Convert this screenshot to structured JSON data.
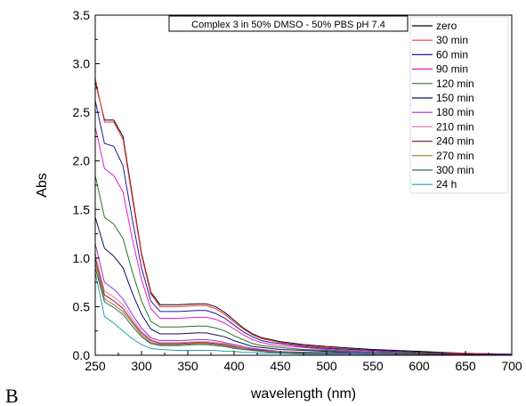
{
  "chart_data": {
    "type": "line",
    "panel_label": "B",
    "title": "Complex 3 in 50% DMSO - 50% PBS pH 7.4",
    "xlabel": "wavelength (nm)",
    "ylabel": "Abs",
    "xlim": [
      250,
      700
    ],
    "ylim": [
      0,
      3.5
    ],
    "xticks": [
      250,
      300,
      350,
      400,
      450,
      500,
      550,
      600,
      650,
      700
    ],
    "yticks": [
      0.0,
      0.5,
      1.0,
      1.5,
      2.0,
      2.5,
      3.0,
      3.5
    ],
    "ytick_labels": [
      "0.0",
      "0.5",
      "1.0",
      "1.5",
      "2.0",
      "2.5",
      "3.0",
      "3.5"
    ],
    "grid": false,
    "legend_position": "top-right",
    "x": [
      250,
      260,
      270,
      280,
      290,
      300,
      310,
      320,
      340,
      360,
      370,
      380,
      390,
      400,
      410,
      420,
      430,
      440,
      450,
      475,
      500,
      550,
      600,
      650,
      700
    ],
    "series": [
      {
        "name": "zero",
        "color": "#000000",
        "values": [
          2.82,
          2.42,
          2.42,
          2.25,
          1.65,
          1.05,
          0.65,
          0.52,
          0.52,
          0.53,
          0.53,
          0.5,
          0.44,
          0.36,
          0.28,
          0.22,
          0.18,
          0.16,
          0.14,
          0.11,
          0.09,
          0.06,
          0.04,
          0.02,
          0.01
        ]
      },
      {
        "name": "30 min",
        "color": "#ff3030",
        "values": [
          2.85,
          2.4,
          2.4,
          2.22,
          1.62,
          1.03,
          0.63,
          0.5,
          0.5,
          0.51,
          0.51,
          0.48,
          0.42,
          0.34,
          0.27,
          0.21,
          0.17,
          0.15,
          0.13,
          0.1,
          0.08,
          0.05,
          0.03,
          0.02,
          0.01
        ]
      },
      {
        "name": "60 min",
        "color": "#1a1aa0",
        "values": [
          2.62,
          2.18,
          2.15,
          1.95,
          1.4,
          0.9,
          0.56,
          0.45,
          0.45,
          0.46,
          0.46,
          0.43,
          0.38,
          0.31,
          0.24,
          0.19,
          0.15,
          0.13,
          0.12,
          0.09,
          0.07,
          0.05,
          0.03,
          0.01,
          0.01
        ]
      },
      {
        "name": "90 min",
        "color": "#e020c0",
        "values": [
          2.35,
          1.92,
          1.85,
          1.68,
          1.2,
          0.78,
          0.48,
          0.38,
          0.38,
          0.39,
          0.39,
          0.37,
          0.33,
          0.27,
          0.21,
          0.16,
          0.13,
          0.11,
          0.1,
          0.08,
          0.06,
          0.04,
          0.02,
          0.01,
          0.0
        ]
      },
      {
        "name": "120 min",
        "color": "#1f7a1f",
        "values": [
          1.85,
          1.42,
          1.35,
          1.2,
          0.86,
          0.56,
          0.35,
          0.29,
          0.29,
          0.3,
          0.3,
          0.28,
          0.25,
          0.2,
          0.16,
          0.12,
          0.1,
          0.09,
          0.08,
          0.06,
          0.05,
          0.03,
          0.02,
          0.01,
          0.0
        ]
      },
      {
        "name": "150 min",
        "color": "#101060",
        "values": [
          1.42,
          1.1,
          1.02,
          0.9,
          0.64,
          0.42,
          0.27,
          0.22,
          0.22,
          0.23,
          0.23,
          0.21,
          0.19,
          0.15,
          0.12,
          0.09,
          0.08,
          0.07,
          0.06,
          0.05,
          0.04,
          0.02,
          0.01,
          0.01,
          0.0
        ]
      },
      {
        "name": "180 min",
        "color": "#9a30d0",
        "values": [
          1.15,
          0.75,
          0.68,
          0.58,
          0.42,
          0.28,
          0.18,
          0.15,
          0.15,
          0.16,
          0.16,
          0.15,
          0.13,
          0.11,
          0.09,
          0.07,
          0.06,
          0.05,
          0.04,
          0.03,
          0.03,
          0.02,
          0.01,
          0.0,
          0.0
        ]
      },
      {
        "name": "210 min",
        "color": "#e080b0",
        "values": [
          1.05,
          0.66,
          0.6,
          0.52,
          0.38,
          0.25,
          0.16,
          0.13,
          0.13,
          0.14,
          0.14,
          0.13,
          0.12,
          0.1,
          0.08,
          0.06,
          0.05,
          0.04,
          0.04,
          0.03,
          0.02,
          0.01,
          0.01,
          0.0,
          0.0
        ]
      },
      {
        "name": "240 min",
        "color": "#8a2030",
        "values": [
          1.0,
          0.62,
          0.56,
          0.48,
          0.35,
          0.23,
          0.15,
          0.12,
          0.12,
          0.13,
          0.13,
          0.12,
          0.11,
          0.09,
          0.07,
          0.06,
          0.05,
          0.04,
          0.03,
          0.03,
          0.02,
          0.01,
          0.01,
          0.0,
          0.0
        ]
      },
      {
        "name": "270 min",
        "color": "#a07020",
        "values": [
          0.95,
          0.58,
          0.52,
          0.45,
          0.33,
          0.21,
          0.13,
          0.11,
          0.11,
          0.12,
          0.12,
          0.11,
          0.1,
          0.08,
          0.07,
          0.05,
          0.04,
          0.04,
          0.03,
          0.02,
          0.02,
          0.01,
          0.0,
          0.0,
          0.0
        ]
      },
      {
        "name": "300 min",
        "color": "#2a6a5a",
        "values": [
          0.9,
          0.55,
          0.49,
          0.42,
          0.3,
          0.19,
          0.12,
          0.1,
          0.1,
          0.11,
          0.11,
          0.1,
          0.09,
          0.07,
          0.06,
          0.05,
          0.04,
          0.03,
          0.03,
          0.02,
          0.02,
          0.01,
          0.0,
          0.0,
          0.0
        ]
      },
      {
        "name": "24 h",
        "color": "#20a0b0",
        "values": [
          0.85,
          0.4,
          0.33,
          0.25,
          0.17,
          0.11,
          0.07,
          0.06,
          0.05,
          0.05,
          0.05,
          0.05,
          0.04,
          0.04,
          0.03,
          0.03,
          0.02,
          0.02,
          0.02,
          0.01,
          0.01,
          0.01,
          0.0,
          0.0,
          0.0
        ]
      }
    ]
  }
}
